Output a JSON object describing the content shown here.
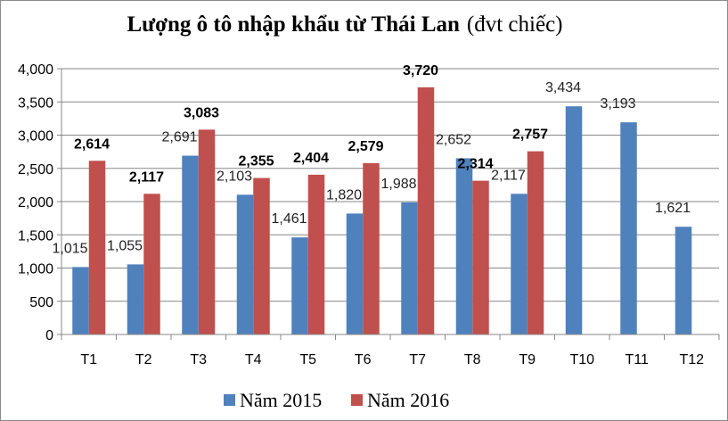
{
  "chart_data": {
    "type": "bar",
    "title": "Lượng ô tô nhập khẩu từ Thái Lan",
    "title_unit": "(đvt chiếc)",
    "categories": [
      "T1",
      "T2",
      "T3",
      "T4",
      "T5",
      "T6",
      "T7",
      "T8",
      "T9",
      "T10",
      "T11",
      "T12"
    ],
    "series": [
      {
        "name": "Năm 2015",
        "color": "#4f81bd",
        "values": [
          1015,
          1055,
          2691,
          2103,
          1461,
          1820,
          1988,
          2652,
          2117,
          3434,
          3193,
          1621
        ],
        "labels": [
          "1,015",
          "1,055",
          "2,691",
          "2,103",
          "1,461",
          "1,820",
          "1,988",
          "2,652",
          "2,117",
          "3,434",
          "3,193",
          "1,621"
        ]
      },
      {
        "name": "Năm 2016",
        "color": "#c0504d",
        "values": [
          2614,
          2117,
          3083,
          2355,
          2404,
          2579,
          3720,
          2314,
          2757,
          null,
          null,
          null
        ],
        "labels": [
          "2,614",
          "2,117",
          "3,083",
          "2,355",
          "2,404",
          "2,579",
          "3,720",
          "2,314",
          "2,757",
          "",
          "",
          ""
        ]
      }
    ],
    "ylim": [
      0,
      4000
    ],
    "y_ticks": [
      0,
      500,
      1000,
      1500,
      2000,
      2500,
      3000,
      3500,
      4000
    ],
    "y_tick_labels": [
      "0",
      "500",
      "1,000",
      "1,500",
      "2,000",
      "2,500",
      "3,000",
      "3,500",
      "4,000"
    ],
    "grid": true,
    "legend_position": "bottom",
    "xlabel": "",
    "ylabel": ""
  }
}
